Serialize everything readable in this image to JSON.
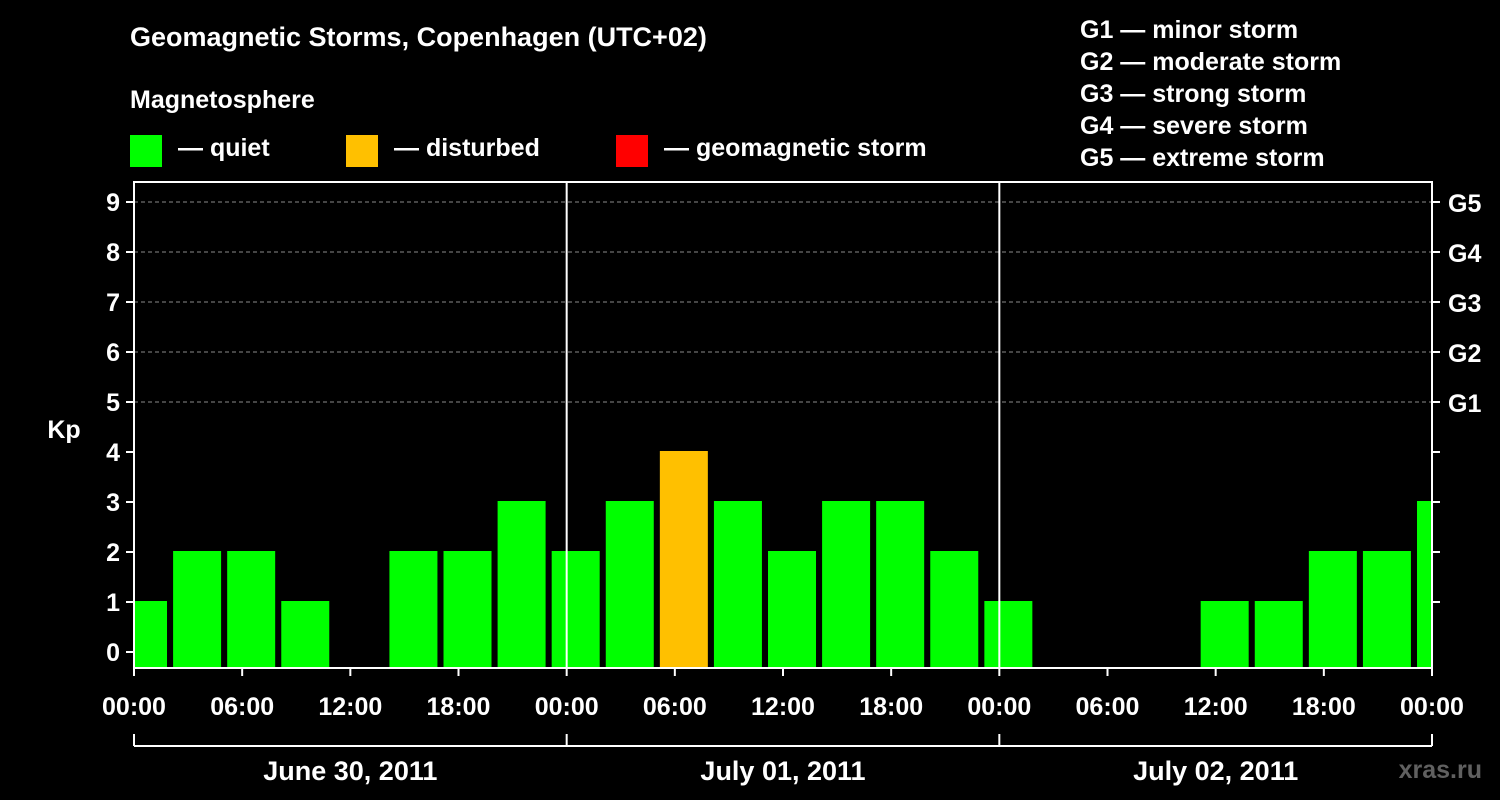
{
  "title": "Geomagnetic Storms, Copenhagen (UTC+02)",
  "subtitle": "Magnetosphere",
  "legend": [
    {
      "label": "— quiet",
      "color": "#00ff00"
    },
    {
      "label": "— disturbed",
      "color": "#ffc000"
    },
    {
      "label": "— geomagnetic storm",
      "color": "#ff0000"
    }
  ],
  "storm_scale": [
    "G1 — minor storm",
    "G2 — moderate storm",
    "G3 — strong storm",
    "G4 — severe storm",
    "G5 — extreme storm"
  ],
  "watermark": "xras.ru",
  "chart_data": {
    "type": "bar",
    "title": "Geomagnetic Storms, Copenhagen (UTC+02)",
    "ylabel": "Kp",
    "ylim": [
      0,
      9
    ],
    "xlim_hours": [
      0,
      72
    ],
    "y_ticks": [
      "0",
      "1",
      "2",
      "3",
      "4",
      "5",
      "6",
      "7",
      "8",
      "9"
    ],
    "right_ticks": [
      {
        "kp": 5,
        "label": "G1"
      },
      {
        "kp": 6,
        "label": "G2"
      },
      {
        "kp": 7,
        "label": "G3"
      },
      {
        "kp": 8,
        "label": "G4"
      },
      {
        "kp": 9,
        "label": "G5"
      }
    ],
    "x_tick_labels": [
      "00:00",
      "06:00",
      "12:00",
      "18:00",
      "00:00",
      "06:00",
      "12:00",
      "18:00",
      "00:00",
      "06:00",
      "12:00",
      "18:00",
      "00:00"
    ],
    "date_labels": [
      "June 30, 2011",
      "July 01, 2011",
      "July 02, 2011"
    ],
    "bar_interval_hours": 3,
    "bar_time_offset_hours": -1,
    "values": [
      1,
      2,
      2,
      1,
      0,
      2,
      2,
      3,
      2,
      3,
      4,
      3,
      2,
      3,
      3,
      2,
      1,
      0,
      0,
      0,
      1,
      1,
      2,
      2,
      3
    ],
    "colors": {
      "quiet": "#00ff00",
      "disturbed": "#ffc000",
      "storm": "#ff0000"
    }
  }
}
